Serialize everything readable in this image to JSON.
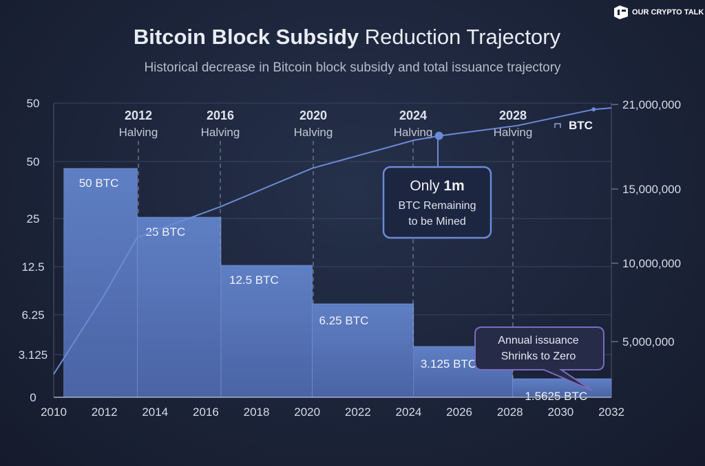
{
  "logo": {
    "text": "OUR CRYPTO TALK"
  },
  "title": {
    "bold": "Bitcoin Block Subsidy",
    "rest": " Reduction Trajectory"
  },
  "subtitle": "Historical decrease in Bitcoin block subsidy and total issuance trajectory",
  "chart_data": {
    "type": "bar",
    "title": "Bitcoin Block Subsidy Reduction Trajectory",
    "subtitle": "Historical decrease in Bitcoin block subsidy and total issuance trajectory",
    "x_ticks": [
      "2010",
      "2012",
      "2014",
      "2016",
      "2018",
      "2020",
      "2022",
      "2024",
      "2026",
      "2028",
      "2030",
      "2032"
    ],
    "xlim": [
      2010,
      2032
    ],
    "left_ticks": [
      "50",
      "50",
      "25",
      "12.5",
      "6.25",
      "3.125",
      "0"
    ],
    "right_ticks": [
      "21,000,000",
      "15,000,000",
      "10,000,000",
      "5,000,000"
    ],
    "bars": [
      {
        "label": "50 BTC",
        "value": 50,
        "start": 2010.4,
        "end": 2013.3
      },
      {
        "label": "25 BTC",
        "value": 25,
        "start": 2013.3,
        "end": 2016.6
      },
      {
        "label": "12.5 BTC",
        "value": 12.5,
        "start": 2016.6,
        "end": 2020.2
      },
      {
        "label": "6.25 BTC",
        "value": 6.25,
        "start": 2020.2,
        "end": 2024.2
      },
      {
        "label": "3.125 BTC",
        "value": 3.125,
        "start": 2024.2,
        "end": 2028.1
      },
      {
        "label": "1.5625 BTC",
        "value": 1.5625,
        "start": 2028.1,
        "end": 2032
      }
    ],
    "halvings": [
      {
        "year": "2012",
        "label": "Halving"
      },
      {
        "year": "2016",
        "label": "Halving"
      },
      {
        "year": "2020",
        "label": "Halving"
      },
      {
        "year": "2024",
        "label": "Halving"
      },
      {
        "year": "2028",
        "label": "Halving"
      }
    ],
    "supply_series": {
      "name": "BTC",
      "x": [
        2010,
        2012,
        2013.3,
        2016.6,
        2020.2,
        2024.2,
        2025.2,
        2028.3,
        2031.3,
        2032
      ],
      "y": [
        2600000,
        8000000,
        11900000,
        14000000,
        16600000,
        18500000,
        18800000,
        19500000,
        20600000,
        20700000
      ]
    },
    "annotations": [
      {
        "line1_pre": "Only ",
        "line1_bold": "1m",
        "line2": "BTC Remaining",
        "line3": "to be Mined"
      },
      {
        "line1": "Annual issuance",
        "line2": "Shrinks to Zero"
      }
    ],
    "grid": true,
    "colors": {
      "bar": "#5a78b8",
      "line": "#6d8ad6",
      "background": "#1b2338"
    }
  }
}
